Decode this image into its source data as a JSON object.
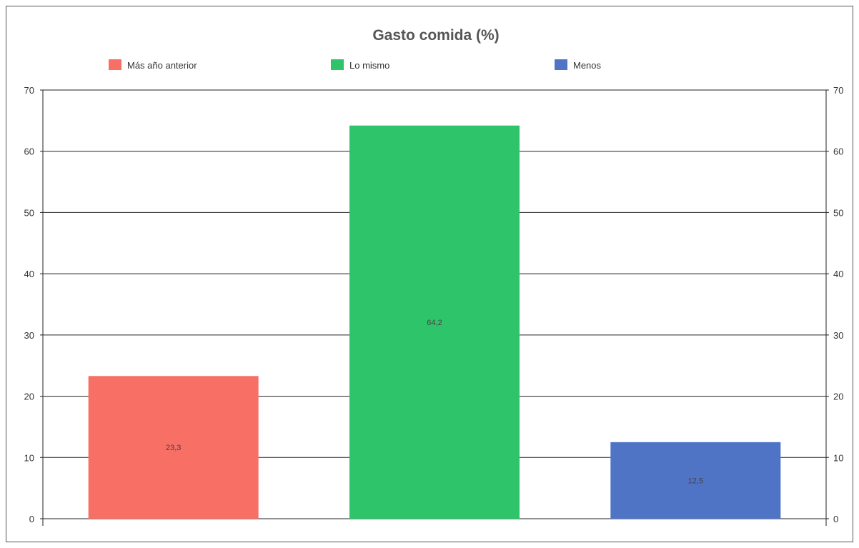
{
  "chart_data": {
    "type": "bar",
    "title": "Gasto comida (%)",
    "categories": [
      "Más año anterior",
      "Lo mismo",
      "Menos"
    ],
    "values": [
      23.3,
      64.2,
      12.5
    ],
    "value_labels": [
      "23,3",
      "64,2",
      "12,5"
    ],
    "colors": [
      "#f86f66",
      "#2ec56a",
      "#4f74c6"
    ],
    "ylim": [
      0,
      70
    ],
    "yticks": [
      0,
      10,
      20,
      30,
      40,
      50,
      60,
      70
    ],
    "ytick_labels": [
      "0",
      "10",
      "20",
      "30",
      "40",
      "50",
      "60",
      "70"
    ],
    "xlabel": "",
    "ylabel": "",
    "grid": true,
    "legend": {
      "position": "top",
      "entries": [
        "Más año anterior",
        "Lo mismo",
        "Menos"
      ]
    },
    "secondary_y_axis": true
  }
}
